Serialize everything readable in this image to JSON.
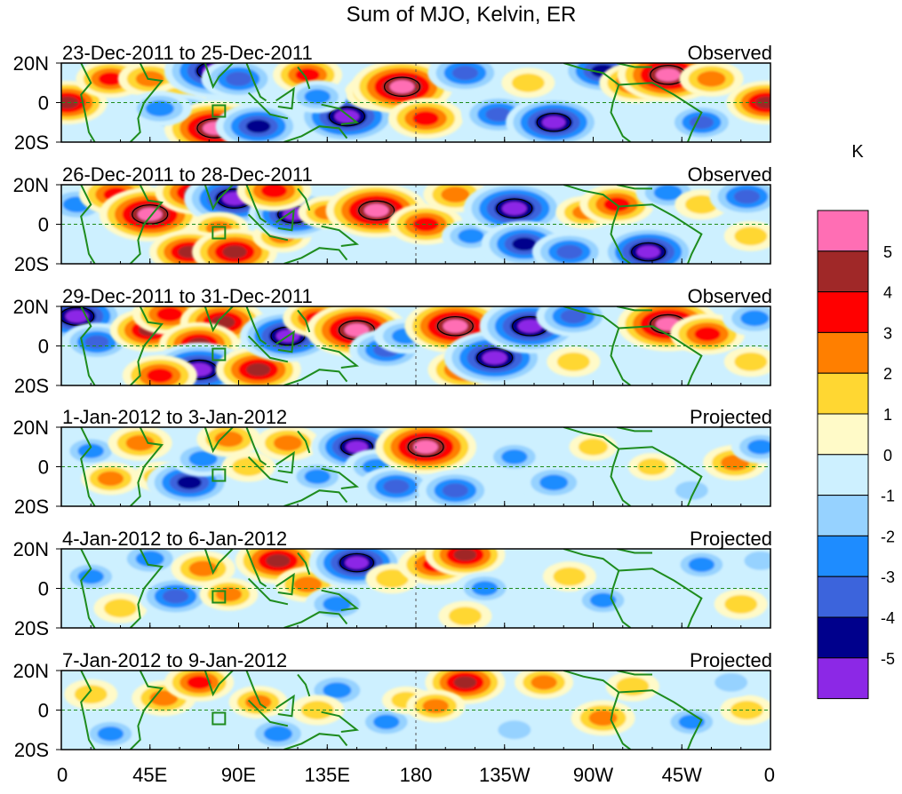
{
  "chart_data": {
    "type": "heatmap",
    "title": "Sum of MJO, Kelvin, ER",
    "units_label": "K",
    "x_ticks": [
      {
        "label": "0",
        "lon": 0
      },
      {
        "label": "45E",
        "lon": 45
      },
      {
        "label": "90E",
        "lon": 90
      },
      {
        "label": "135E",
        "lon": 135
      },
      {
        "label": "180",
        "lon": 180
      },
      {
        "label": "135W",
        "lon": 225
      },
      {
        "label": "90W",
        "lon": 270
      },
      {
        "label": "45W",
        "lon": 315
      },
      {
        "label": "0",
        "lon": 360
      }
    ],
    "y_ticks": [
      {
        "label": "20N",
        "lat": 20
      },
      {
        "label": "0",
        "lat": 0
      },
      {
        "label": "20S",
        "lat": -20
      }
    ],
    "lon_range": [
      0,
      360
    ],
    "lat_range": [
      -20,
      20
    ],
    "panels": [
      {
        "period": "23-Dec-2011 to 25-Dec-2011",
        "kind": "Observed",
        "features": [
          {
            "lon": 3,
            "lat": 0,
            "value": 3.5
          },
          {
            "lon": 25,
            "lat": 12,
            "value": 2.5
          },
          {
            "lon": 45,
            "lat": 12,
            "value": 2
          },
          {
            "lon": 60,
            "lat": 3,
            "value": 1
          },
          {
            "lon": 78,
            "lat": 16,
            "value": -5.5
          },
          {
            "lon": 90,
            "lat": 12,
            "value": -3
          },
          {
            "lon": 62,
            "lat": -6,
            "value": -3
          },
          {
            "lon": 78,
            "lat": -13,
            "value": 5.5
          },
          {
            "lon": 100,
            "lat": -12,
            "value": -4
          },
          {
            "lon": 125,
            "lat": 14,
            "value": 2.5
          },
          {
            "lon": 145,
            "lat": -7,
            "value": -5.5
          },
          {
            "lon": 160,
            "lat": 5,
            "value": 2
          },
          {
            "lon": 173,
            "lat": 8,
            "value": 5.5
          },
          {
            "lon": 185,
            "lat": -8,
            "value": 3
          },
          {
            "lon": 205,
            "lat": 15,
            "value": -3
          },
          {
            "lon": 222,
            "lat": -6,
            "value": -3
          },
          {
            "lon": 250,
            "lat": -10,
            "value": -5
          },
          {
            "lon": 237,
            "lat": 10,
            "value": 1
          },
          {
            "lon": 275,
            "lat": 16,
            "value": -4
          },
          {
            "lon": 292,
            "lat": 10,
            "value": 3
          },
          {
            "lon": 308,
            "lat": 14,
            "value": 5.5
          },
          {
            "lon": 330,
            "lat": 12,
            "value": 2
          },
          {
            "lon": 325,
            "lat": -10,
            "value": -2.5
          },
          {
            "lon": 358,
            "lat": 0,
            "value": 3.5
          },
          {
            "lon": 50,
            "lat": -3,
            "value": -2
          },
          {
            "lon": 130,
            "lat": 3,
            "value": -1.5
          }
        ]
      },
      {
        "period": "26-Dec-2011 to 28-Dec-2011",
        "kind": "Observed",
        "features": [
          {
            "lon": 8,
            "lat": 10,
            "value": -2
          },
          {
            "lon": 28,
            "lat": 15,
            "value": 3
          },
          {
            "lon": 45,
            "lat": 5,
            "value": 5.5
          },
          {
            "lon": 68,
            "lat": 16,
            "value": 3.5
          },
          {
            "lon": 88,
            "lat": 13,
            "value": -5.5
          },
          {
            "lon": 80,
            "lat": -2,
            "value": 1.5
          },
          {
            "lon": 65,
            "lat": -14,
            "value": 3.5
          },
          {
            "lon": 88,
            "lat": -14,
            "value": 4
          },
          {
            "lon": 112,
            "lat": -6,
            "value": 1.5
          },
          {
            "lon": 118,
            "lat": 5,
            "value": -4.5
          },
          {
            "lon": 108,
            "lat": 17,
            "value": 3
          },
          {
            "lon": 135,
            "lat": 6,
            "value": 1.5
          },
          {
            "lon": 160,
            "lat": 7,
            "value": 5.5
          },
          {
            "lon": 185,
            "lat": 0,
            "value": 3
          },
          {
            "lon": 200,
            "lat": 15,
            "value": 2
          },
          {
            "lon": 208,
            "lat": -6,
            "value": -1.5
          },
          {
            "lon": 230,
            "lat": 8,
            "value": -5.5
          },
          {
            "lon": 235,
            "lat": -10,
            "value": -4
          },
          {
            "lon": 258,
            "lat": -14,
            "value": -3
          },
          {
            "lon": 266,
            "lat": 6,
            "value": 1.5
          },
          {
            "lon": 282,
            "lat": 10,
            "value": 3
          },
          {
            "lon": 308,
            "lat": 16,
            "value": -2
          },
          {
            "lon": 298,
            "lat": -14,
            "value": -5
          },
          {
            "lon": 325,
            "lat": 10,
            "value": 1
          },
          {
            "lon": 348,
            "lat": 14,
            "value": -3
          },
          {
            "lon": 350,
            "lat": -6,
            "value": 1
          }
        ]
      },
      {
        "period": "29-Dec-2011 to 31-Dec-2011",
        "kind": "Observed",
        "features": [
          {
            "lon": 8,
            "lat": 15,
            "value": -5
          },
          {
            "lon": 18,
            "lat": 2,
            "value": -2.5
          },
          {
            "lon": 45,
            "lat": 8,
            "value": 3.5
          },
          {
            "lon": 55,
            "lat": 16,
            "value": 3
          },
          {
            "lon": 82,
            "lat": 12,
            "value": 4
          },
          {
            "lon": 70,
            "lat": 1,
            "value": 3.5
          },
          {
            "lon": 70,
            "lat": -12,
            "value": -5.5
          },
          {
            "lon": 50,
            "lat": -15,
            "value": 3
          },
          {
            "lon": 100,
            "lat": -12,
            "value": 4
          },
          {
            "lon": 115,
            "lat": 5,
            "value": -5
          },
          {
            "lon": 130,
            "lat": 14,
            "value": 2.5
          },
          {
            "lon": 150,
            "lat": 8,
            "value": 5.5
          },
          {
            "lon": 165,
            "lat": -2,
            "value": -3
          },
          {
            "lon": 175,
            "lat": 5,
            "value": -2
          },
          {
            "lon": 200,
            "lat": 10,
            "value": 5.5
          },
          {
            "lon": 205,
            "lat": -12,
            "value": 3
          },
          {
            "lon": 220,
            "lat": -6,
            "value": -5.5
          },
          {
            "lon": 238,
            "lat": 10,
            "value": -5.5
          },
          {
            "lon": 260,
            "lat": 15,
            "value": -3
          },
          {
            "lon": 260,
            "lat": -8,
            "value": 1
          },
          {
            "lon": 308,
            "lat": 11,
            "value": 5.5
          },
          {
            "lon": 328,
            "lat": 6,
            "value": 3
          },
          {
            "lon": 352,
            "lat": 14,
            "value": -2
          },
          {
            "lon": 350,
            "lat": -8,
            "value": 1
          }
        ]
      },
      {
        "period": "1-Jan-2012 to 3-Jan-2012",
        "kind": "Projected",
        "features": [
          {
            "lon": 15,
            "lat": 8,
            "value": -1.5
          },
          {
            "lon": 25,
            "lat": -6,
            "value": 1.5
          },
          {
            "lon": 40,
            "lat": 12,
            "value": 2
          },
          {
            "lon": 50,
            "lat": -5,
            "value": 1
          },
          {
            "lon": 65,
            "lat": -8,
            "value": -4
          },
          {
            "lon": 72,
            "lat": 4,
            "value": -2
          },
          {
            "lon": 85,
            "lat": 14,
            "value": 2
          },
          {
            "lon": 95,
            "lat": 0,
            "value": 1
          },
          {
            "lon": 115,
            "lat": 12,
            "value": 2
          },
          {
            "lon": 130,
            "lat": -5,
            "value": -1.5
          },
          {
            "lon": 150,
            "lat": 10,
            "value": -4.5
          },
          {
            "lon": 160,
            "lat": 0,
            "value": -2
          },
          {
            "lon": 170,
            "lat": -10,
            "value": -3
          },
          {
            "lon": 185,
            "lat": 10,
            "value": 5.5
          },
          {
            "lon": 200,
            "lat": -12,
            "value": -3
          },
          {
            "lon": 230,
            "lat": 5,
            "value": -1.5
          },
          {
            "lon": 250,
            "lat": -8,
            "value": -2
          },
          {
            "lon": 270,
            "lat": 10,
            "value": 0.5
          },
          {
            "lon": 300,
            "lat": 0,
            "value": 0.5
          },
          {
            "lon": 342,
            "lat": 2,
            "value": 2
          },
          {
            "lon": 320,
            "lat": -12,
            "value": -1
          },
          {
            "lon": 355,
            "lat": 10,
            "value": -1.5
          }
        ]
      },
      {
        "period": "4-Jan-2012 to 6-Jan-2012",
        "kind": "Projected",
        "features": [
          {
            "lon": 15,
            "lat": 6,
            "value": -1.5
          },
          {
            "lon": 30,
            "lat": -10,
            "value": 1
          },
          {
            "lon": 45,
            "lat": 15,
            "value": -2
          },
          {
            "lon": 58,
            "lat": -4,
            "value": -3
          },
          {
            "lon": 72,
            "lat": 10,
            "value": 2
          },
          {
            "lon": 85,
            "lat": -3,
            "value": 1.5
          },
          {
            "lon": 110,
            "lat": 14,
            "value": 4
          },
          {
            "lon": 125,
            "lat": 2,
            "value": 2
          },
          {
            "lon": 140,
            "lat": -8,
            "value": -2
          },
          {
            "lon": 150,
            "lat": 13,
            "value": -5
          },
          {
            "lon": 168,
            "lat": 5,
            "value": 1
          },
          {
            "lon": 190,
            "lat": 12,
            "value": 3
          },
          {
            "lon": 205,
            "lat": 17,
            "value": 3.5
          },
          {
            "lon": 215,
            "lat": 0,
            "value": -1.5
          },
          {
            "lon": 205,
            "lat": -14,
            "value": 1
          },
          {
            "lon": 258,
            "lat": 6,
            "value": 1
          },
          {
            "lon": 275,
            "lat": -6,
            "value": -1.5
          },
          {
            "lon": 325,
            "lat": 12,
            "value": -1.5
          },
          {
            "lon": 345,
            "lat": -8,
            "value": 1
          },
          {
            "lon": 355,
            "lat": 14,
            "value": -1
          }
        ]
      },
      {
        "period": "7-Jan-2012 to 9-Jan-2012",
        "kind": "Projected",
        "features": [
          {
            "lon": 15,
            "lat": 8,
            "value": 1
          },
          {
            "lon": 25,
            "lat": -12,
            "value": -1.5
          },
          {
            "lon": 52,
            "lat": 6,
            "value": 2
          },
          {
            "lon": 70,
            "lat": 14,
            "value": 2.5
          },
          {
            "lon": 100,
            "lat": 4,
            "value": 1.5
          },
          {
            "lon": 110,
            "lat": -12,
            "value": -2
          },
          {
            "lon": 140,
            "lat": 10,
            "value": -2
          },
          {
            "lon": 130,
            "lat": 0,
            "value": 1
          },
          {
            "lon": 165,
            "lat": -6,
            "value": -1.5
          },
          {
            "lon": 175,
            "lat": 5,
            "value": 0.5
          },
          {
            "lon": 205,
            "lat": 14,
            "value": 3.5
          },
          {
            "lon": 190,
            "lat": 2,
            "value": 1.5
          },
          {
            "lon": 230,
            "lat": -10,
            "value": -1
          },
          {
            "lon": 245,
            "lat": 14,
            "value": 1.5
          },
          {
            "lon": 275,
            "lat": -4,
            "value": 2
          },
          {
            "lon": 290,
            "lat": 12,
            "value": 1
          },
          {
            "lon": 320,
            "lat": -6,
            "value": -1.5
          },
          {
            "lon": 348,
            "lat": 0,
            "value": 1
          },
          {
            "lon": 340,
            "lat": 14,
            "value": -1
          }
        ]
      }
    ],
    "legend": {
      "levels": [
        {
          "label": "5",
          "color": "#ff6eb4"
        },
        {
          "label": "4",
          "color": "#a02828"
        },
        {
          "label": "3",
          "color": "#ff0000"
        },
        {
          "label": "2",
          "color": "#ff7f00"
        },
        {
          "label": "1",
          "color": "#ffd732"
        },
        {
          "label": "0",
          "color": "#fffac8"
        },
        {
          "label": "-1",
          "color": "#cdf0ff"
        },
        {
          "label": "-2",
          "color": "#96d2ff"
        },
        {
          "label": "-3",
          "color": "#1e8cff"
        },
        {
          "label": "-4",
          "color": "#3c64dc"
        },
        {
          "label": "-5",
          "color": "#00008c"
        }
      ],
      "bottom_color": "#8c28e6"
    }
  },
  "colors": {
    "coastline": "#1e8c1e",
    "equator_line": "#1e8c1e",
    "frame": "#000000"
  }
}
